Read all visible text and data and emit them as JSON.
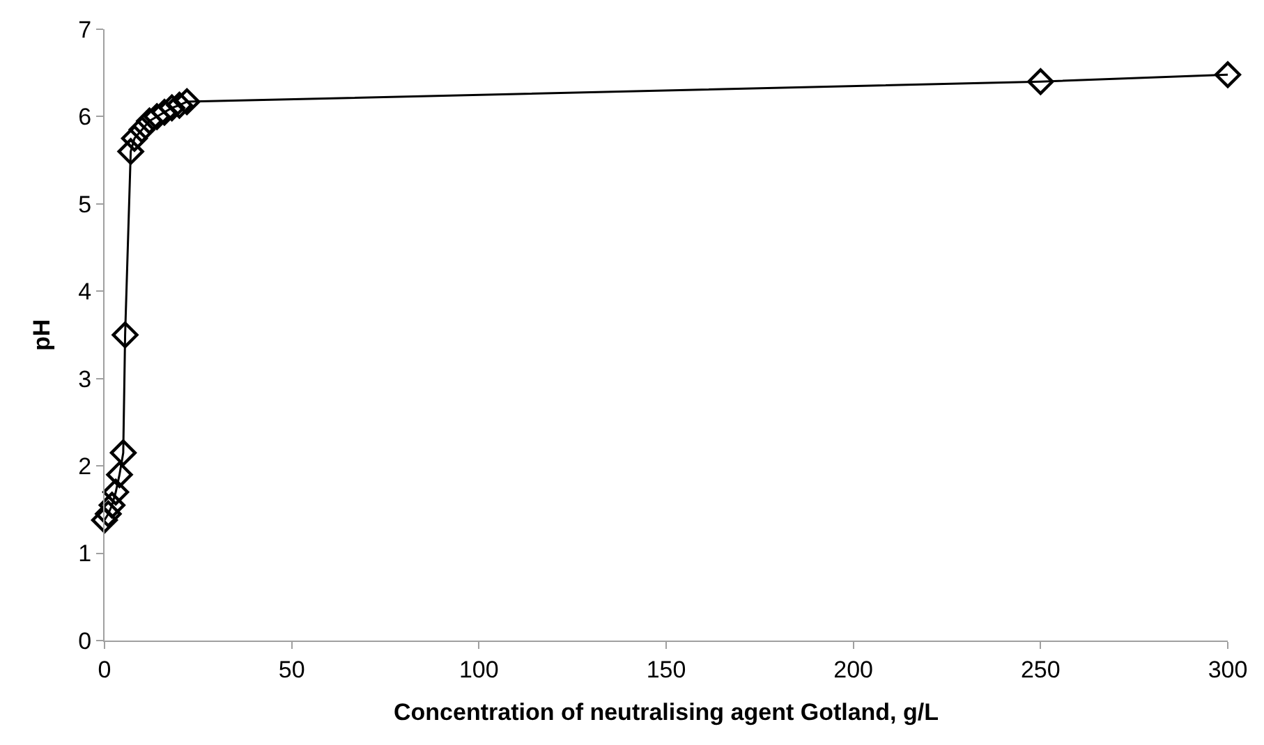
{
  "chart_data": {
    "type": "line",
    "xlabel": "Concentration of neutralising agent Gotland, g/L",
    "ylabel": "pH",
    "x": [
      0,
      1,
      2,
      3,
      4,
      5,
      5.5,
      7,
      8,
      10,
      12,
      14,
      16,
      18,
      20,
      22,
      250,
      300
    ],
    "series": [
      {
        "color": "#000000",
        "values": [
          1.38,
          1.45,
          1.55,
          1.7,
          1.9,
          2.15,
          3.5,
          5.6,
          5.75,
          5.85,
          5.95,
          6.0,
          6.05,
          6.1,
          6.13,
          6.17,
          6.4,
          6.48
        ]
      }
    ],
    "marker": "diamond",
    "line_style": "solid",
    "xlim": [
      0,
      300
    ],
    "xticks": [
      0,
      50,
      100,
      150,
      200,
      250,
      300
    ],
    "ylim": [
      0,
      7
    ],
    "yticks": [
      0,
      1,
      2,
      3,
      4,
      5,
      6,
      7
    ]
  }
}
